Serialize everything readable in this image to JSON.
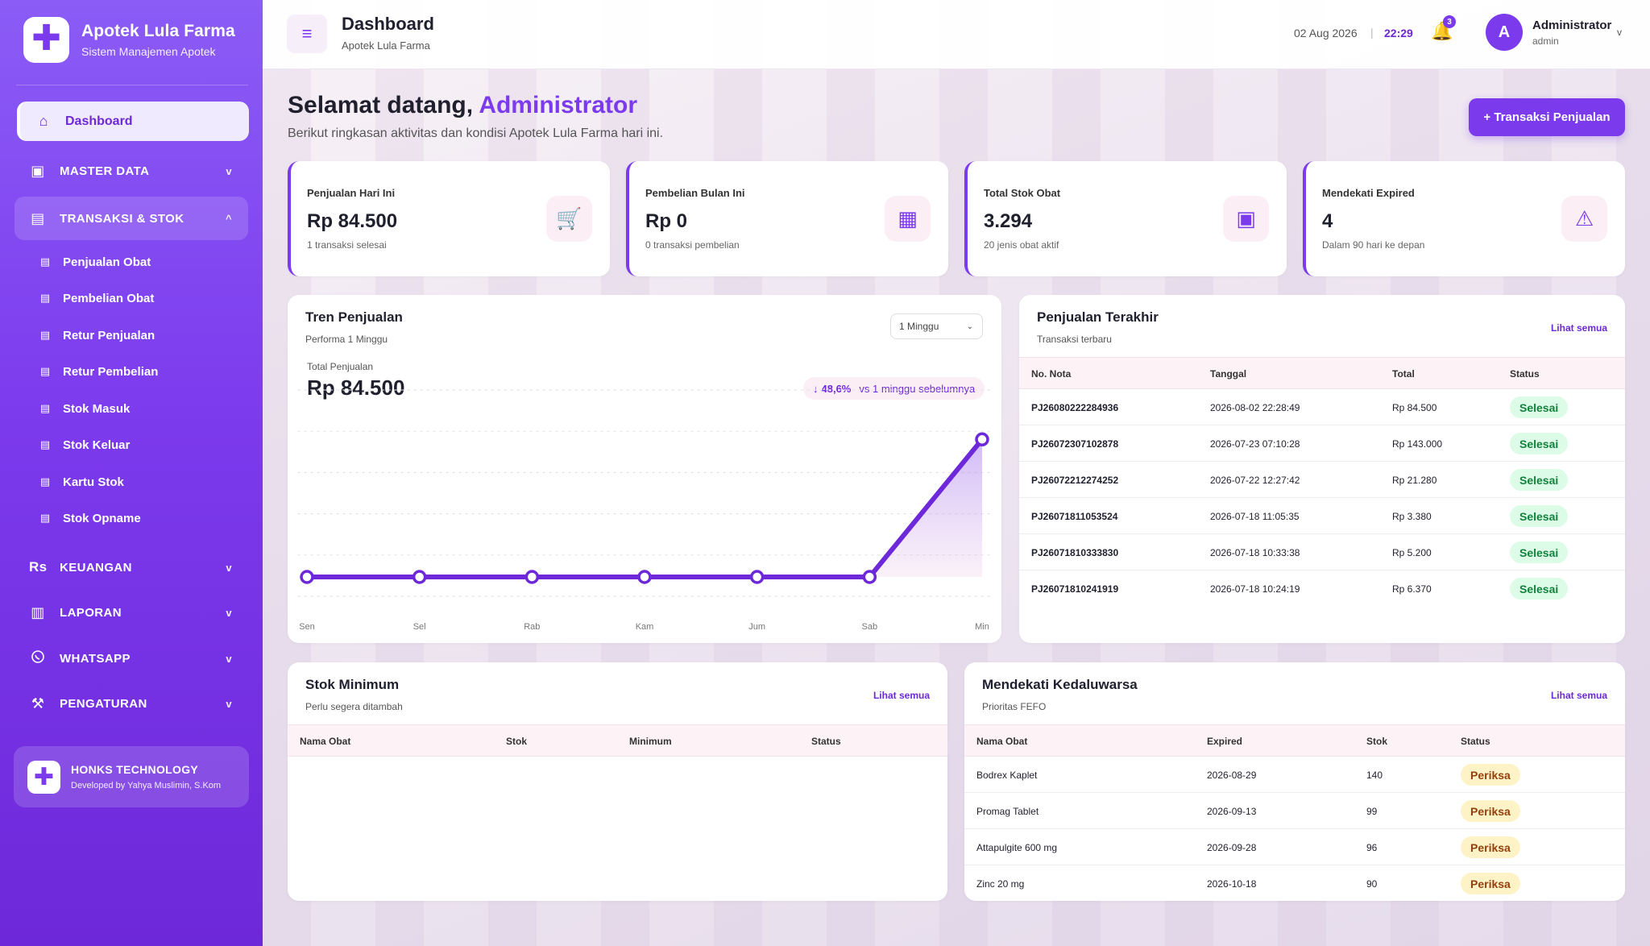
{
  "brand": {
    "title": "Apotek Lula Farma",
    "subtitle": "Sistem Manajemen Apotek"
  },
  "sidebar": {
    "dashboard": "Dashboard",
    "master_data": "MASTER DATA",
    "transaksi": "TRANSAKSI & STOK",
    "sub_items": [
      "Penjualan Obat",
      "Pembelian Obat",
      "Retur Penjualan",
      "Retur Pembelian",
      "Stok Masuk",
      "Stok Keluar",
      "Kartu Stok",
      "Stok Opname"
    ],
    "keuangan": "KEUANGAN",
    "keuangan_icon_text": "Rs",
    "laporan": "LAPORAN",
    "whatsapp": "WHATSAPP",
    "pengaturan": "PENGATURAN",
    "footer_title": "HONKS TECHNOLOGY",
    "footer_sub": "Developed by Yahya Muslimin, S.Kom"
  },
  "topbar": {
    "title": "Dashboard",
    "subtitle": "Apotek Lula Farma",
    "date": "02 Aug 2026",
    "separator": "|",
    "time": "22:29",
    "notif_count": "3",
    "avatar_initial": "A",
    "user_name": "Administrator",
    "user_role": "admin"
  },
  "welcome": {
    "greeting": "Selamat datang,",
    "name": "Administrator",
    "subtitle": "Berikut ringkasan aktivitas dan kondisi Apotek Lula Farma hari ini.",
    "button": "+ Transaksi Penjualan"
  },
  "stats": [
    {
      "label": "Penjualan Hari Ini",
      "value": "Rp 84.500",
      "sub": "1 transaksi selesai",
      "icon": "cart-icon"
    },
    {
      "label": "Pembelian Bulan Ini",
      "value": "Rp 0",
      "sub": "0 transaksi pembelian",
      "icon": "grid-icon"
    },
    {
      "label": "Total Stok Obat",
      "value": "3.294",
      "sub": "20 jenis obat aktif",
      "icon": "box-icon"
    },
    {
      "label": "Mendekati Expired",
      "value": "4",
      "sub": "Dalam 90 hari ke depan",
      "icon": "warning-icon"
    }
  ],
  "trend": {
    "title": "Tren Penjualan",
    "subtitle": "Performa 1 Minggu",
    "select_value": "1 Minggu",
    "total_label": "Total Penjualan",
    "total_value": "Rp 84.500",
    "badge_arrow": "↓",
    "badge_pct": "48,6%",
    "badge_text": "vs 1 minggu sebelumnya"
  },
  "chart_data": {
    "type": "area",
    "categories": [
      "Sen",
      "Sel",
      "Rab",
      "Kam",
      "Jum",
      "Sab",
      "Min"
    ],
    "values": [
      0,
      0,
      0,
      0,
      0,
      0,
      84500
    ],
    "title": "",
    "xlabel": "",
    "ylabel": "",
    "ylim": [
      0,
      100000
    ],
    "grid": true,
    "color": "#6d28d9"
  },
  "recent": {
    "title": "Penjualan Terakhir",
    "subtitle": "Transaksi terbaru",
    "link": "Lihat semua",
    "headers": [
      "No. Nota",
      "Tanggal",
      "Total",
      "Status"
    ],
    "rows": [
      [
        "PJ26080222284936",
        "2026-08-02 22:28:49",
        "Rp 84.500",
        "Selesai"
      ],
      [
        "PJ26072307102878",
        "2026-07-23 07:10:28",
        "Rp 143.000",
        "Selesai"
      ],
      [
        "PJ26072212274252",
        "2026-07-22 12:27:42",
        "Rp 21.280",
        "Selesai"
      ],
      [
        "PJ26071811053524",
        "2026-07-18 11:05:35",
        "Rp 3.380",
        "Selesai"
      ],
      [
        "PJ26071810333830",
        "2026-07-18 10:33:38",
        "Rp 5.200",
        "Selesai"
      ],
      [
        "PJ26071810241919",
        "2026-07-18 10:24:19",
        "Rp 6.370",
        "Selesai"
      ]
    ]
  },
  "stok_min": {
    "title": "Stok Minimum",
    "subtitle": "Perlu segera ditambah",
    "link": "Lihat semua",
    "headers": [
      "Nama Obat",
      "Stok",
      "Minimum",
      "Status"
    ]
  },
  "expiring": {
    "title": "Mendekati Kedaluwarsa",
    "subtitle": "Prioritas FEFO",
    "link": "Lihat semua",
    "headers": [
      "Nama Obat",
      "Expired",
      "Stok",
      "Status"
    ],
    "rows": [
      [
        "Bodrex Kaplet",
        "2026-08-29",
        "140",
        "Periksa"
      ],
      [
        "Promag Tablet",
        "2026-09-13",
        "99",
        "Periksa"
      ],
      [
        "Attapulgite 600 mg",
        "2026-09-28",
        "96",
        "Periksa"
      ],
      [
        "Zinc 20 mg",
        "2026-10-18",
        "90",
        "Periksa"
      ]
    ]
  }
}
